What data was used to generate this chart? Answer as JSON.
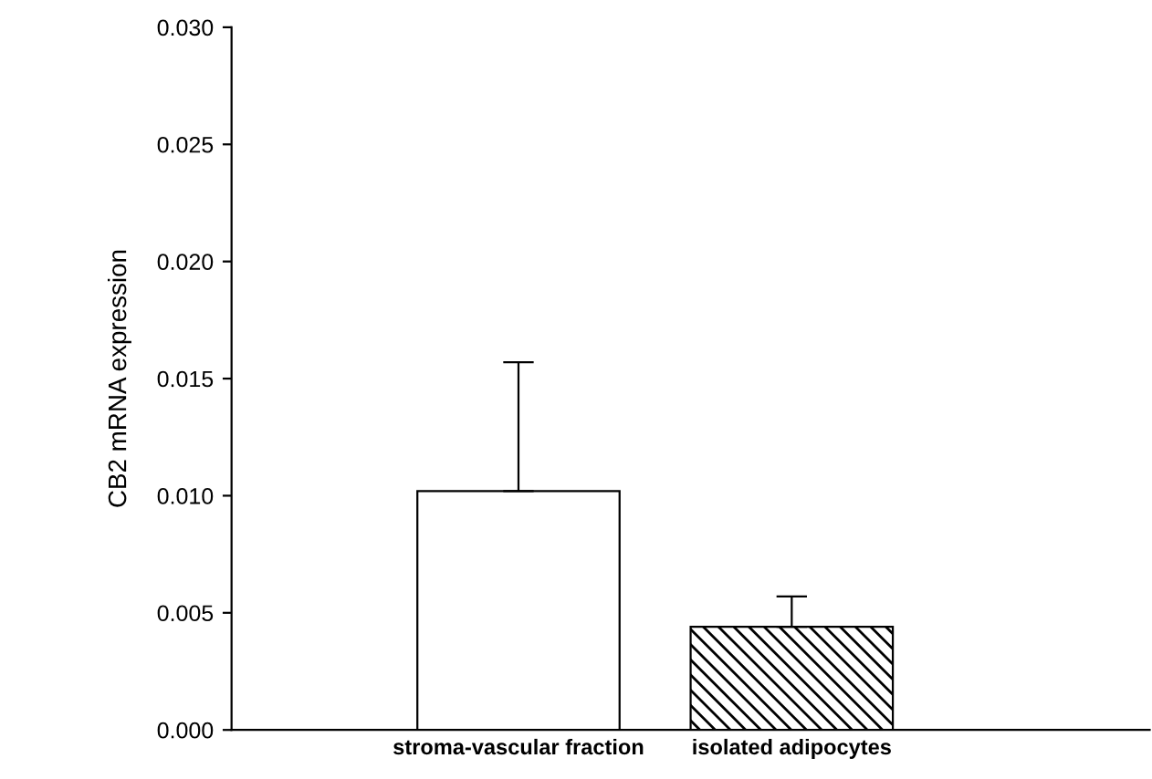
{
  "chart_data": {
    "type": "bar",
    "ylabel": "CB2 mRNA expression",
    "categories": [
      "stroma-vascular fraction",
      "isolated adipocytes"
    ],
    "values": [
      0.0102,
      0.0044
    ],
    "errors": [
      [
        0.0102,
        0.0157
      ],
      [
        0.0044,
        0.0057
      ]
    ],
    "colors": [
      "#ffffff",
      "#000000"
    ],
    "ylim": [
      0,
      0.03
    ],
    "yticks": [
      {
        "value": 0,
        "label": "0.000"
      },
      {
        "value": 0.005,
        "label": "0.005"
      },
      {
        "value": 0.01,
        "label": "0.010"
      },
      {
        "value": 0.015,
        "label": "0.015"
      },
      {
        "value": 0.02,
        "label": "0.020"
      },
      {
        "value": 0.025,
        "label": "0.025"
      },
      {
        "value": 0.03,
        "label": "0.030"
      }
    ],
    "grid": false,
    "legend": false
  }
}
